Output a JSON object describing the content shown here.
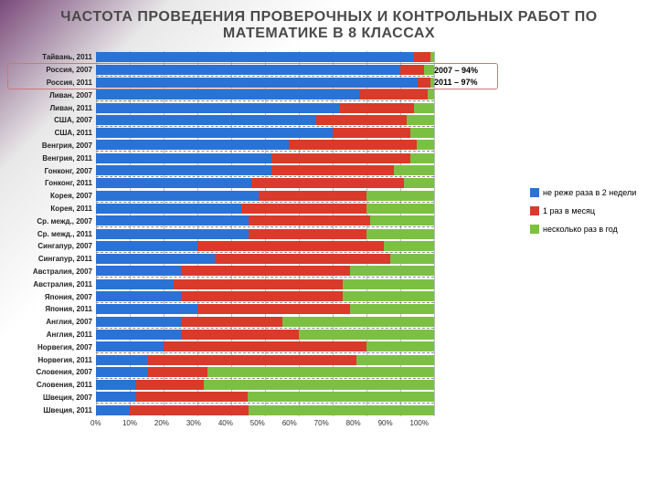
{
  "title": "ЧАСТОТА ПРОВЕДЕНИЯ ПРОВЕРОЧНЫХ И КОНТРОЛЬНЫХ РАБОТ ПО МАТЕМАТИКЕ В 8 КЛАССАХ",
  "title_fontsize": 16,
  "annot2007": "2007 – 94%",
  "annot2011": "2011 – 97%",
  "colors": {
    "blue": "#2a72d6",
    "red": "#d93a2a",
    "green": "#7bc043",
    "grid": "#bbbbbb"
  },
  "legend": [
    {
      "label": "не реже раза в 2 недели",
      "color": "#2a72d6"
    },
    {
      "label": "1 раз в месяц",
      "color": "#d93a2a"
    },
    {
      "label": "несколько раз в год",
      "color": "#7bc043"
    }
  ],
  "x_ticks": [
    "0%",
    "10%",
    "20%",
    "30%",
    "40%",
    "50%",
    "60%",
    "70%",
    "80%",
    "90%",
    "100%"
  ],
  "highlight_rows": [
    1,
    2
  ],
  "rows": [
    {
      "label": "Тайвань, 2011",
      "v": [
        94,
        5,
        1
      ]
    },
    {
      "label": "Россия, 2007",
      "v": [
        90,
        7,
        3
      ]
    },
    {
      "label": "Россия, 2011",
      "v": [
        95,
        4,
        1
      ]
    },
    {
      "label": "Ливан, 2007",
      "v": [
        78,
        20,
        2
      ]
    },
    {
      "label": "Ливан, 2011",
      "v": [
        72,
        22,
        6
      ]
    },
    {
      "label": "США, 2007",
      "v": [
        65,
        27,
        8
      ]
    },
    {
      "label": "США, 2011",
      "v": [
        70,
        23,
        7
      ]
    },
    {
      "label": "Венгрия, 2007",
      "v": [
        57,
        38,
        5
      ]
    },
    {
      "label": "Венгрия, 2011",
      "v": [
        52,
        41,
        7
      ]
    },
    {
      "label": "Гонконг, 2007",
      "v": [
        52,
        36,
        12
      ]
    },
    {
      "label": "Гонконг, 2011",
      "v": [
        46,
        45,
        9
      ]
    },
    {
      "label": "Корея, 2007",
      "v": [
        48,
        32,
        20
      ]
    },
    {
      "label": "Корея, 2011",
      "v": [
        43,
        37,
        20
      ]
    },
    {
      "label": "Ср. межд., 2007",
      "v": [
        45,
        36,
        19
      ]
    },
    {
      "label": "Ср. межд., 2011",
      "v": [
        45,
        35,
        20
      ]
    },
    {
      "label": "Сингапур, 2007",
      "v": [
        30,
        55,
        15
      ]
    },
    {
      "label": "Сингапур, 2011",
      "v": [
        35,
        52,
        13
      ]
    },
    {
      "label": "Австралия, 2007",
      "v": [
        25,
        50,
        25
      ]
    },
    {
      "label": "Австралия, 2011",
      "v": [
        23,
        50,
        27
      ]
    },
    {
      "label": "Япония, 2007",
      "v": [
        25,
        48,
        27
      ]
    },
    {
      "label": "Япония, 2011",
      "v": [
        30,
        45,
        25
      ]
    },
    {
      "label": "Англия, 2007",
      "v": [
        25,
        30,
        45
      ]
    },
    {
      "label": "Англия, 2011",
      "v": [
        25,
        35,
        40
      ]
    },
    {
      "label": "Норвегия, 2007",
      "v": [
        20,
        60,
        20
      ]
    },
    {
      "label": "Норвегия, 2011",
      "v": [
        15,
        62,
        23
      ]
    },
    {
      "label": "Словения, 2007",
      "v": [
        15,
        18,
        67
      ]
    },
    {
      "label": "Словения, 2011",
      "v": [
        12,
        20,
        68
      ]
    },
    {
      "label": "Швеция, 2007",
      "v": [
        12,
        33,
        55
      ]
    },
    {
      "label": "Швеция, 2011",
      "v": [
        10,
        35,
        55
      ]
    }
  ]
}
